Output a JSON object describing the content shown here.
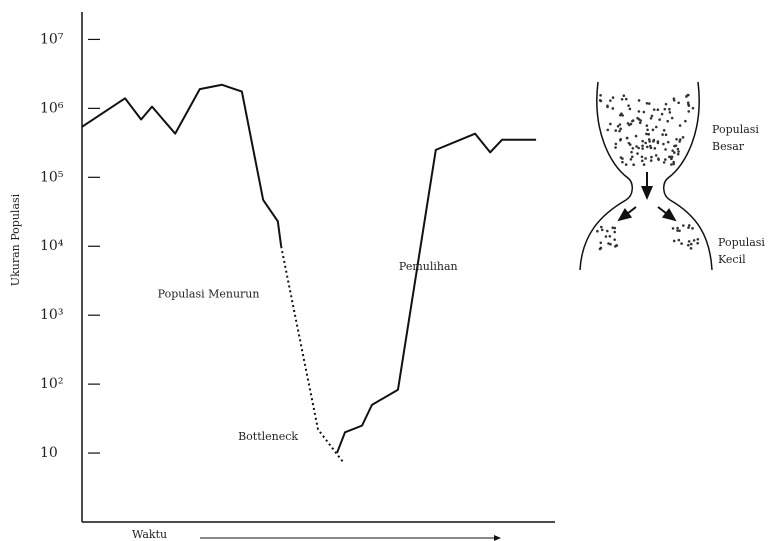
{
  "chart_data": {
    "type": "line",
    "y_label": "Ukuran Populasi",
    "x_label": "Waktu",
    "log_scale_y": true,
    "xlim": [
      0,
      100
    ],
    "ylim": [
      1,
      25000000
    ],
    "yticks": [
      {
        "value": 10,
        "label": "10"
      },
      {
        "value": 100,
        "label": "10²"
      },
      {
        "value": 1000,
        "label": "10³"
      },
      {
        "value": 10000,
        "label": "10⁴"
      },
      {
        "value": 100000,
        "label": "10⁵"
      },
      {
        "value": 1000000,
        "label": "10⁶"
      },
      {
        "value": 10000000,
        "label": "10⁷"
      }
    ],
    "series": [
      {
        "color": "#111111",
        "style": "solid",
        "x": [
          0,
          9.1,
          12.5,
          14.8,
          19.7,
          24.9,
          29.6,
          33.8,
          38.3,
          41.4,
          42.1
        ],
        "values": [
          540000,
          1400000,
          690000,
          1060000,
          430000,
          1900000,
          2200000,
          1750000,
          47000,
          23000,
          10000
        ]
      },
      {
        "color": "#111111",
        "style": "dotted",
        "x": [
          42.1,
          49.9,
          55.2
        ],
        "values": [
          10000,
          22,
          7.4
        ]
      },
      {
        "color": "#111111",
        "style": "solid",
        "x": [
          53.9,
          55.6,
          59.2,
          61.3,
          66.8,
          74.8,
          83.1,
          86.3,
          88.8,
          96
        ],
        "values": [
          10,
          20,
          25,
          50,
          83,
          250000,
          430000,
          230000,
          350000,
          350000
        ]
      }
    ],
    "annotations": [
      {
        "text": "Populasi Menurun",
        "x": 16,
        "y": 2000
      },
      {
        "text": "Bottleneck",
        "x": 33,
        "y": 17
      },
      {
        "text": "Pemulihan",
        "x": 67,
        "y": 5000
      }
    ]
  },
  "diagram": {
    "large_label": [
      "Populasi",
      "Besar"
    ],
    "small_label": [
      "Populasi",
      "Kecil"
    ]
  }
}
